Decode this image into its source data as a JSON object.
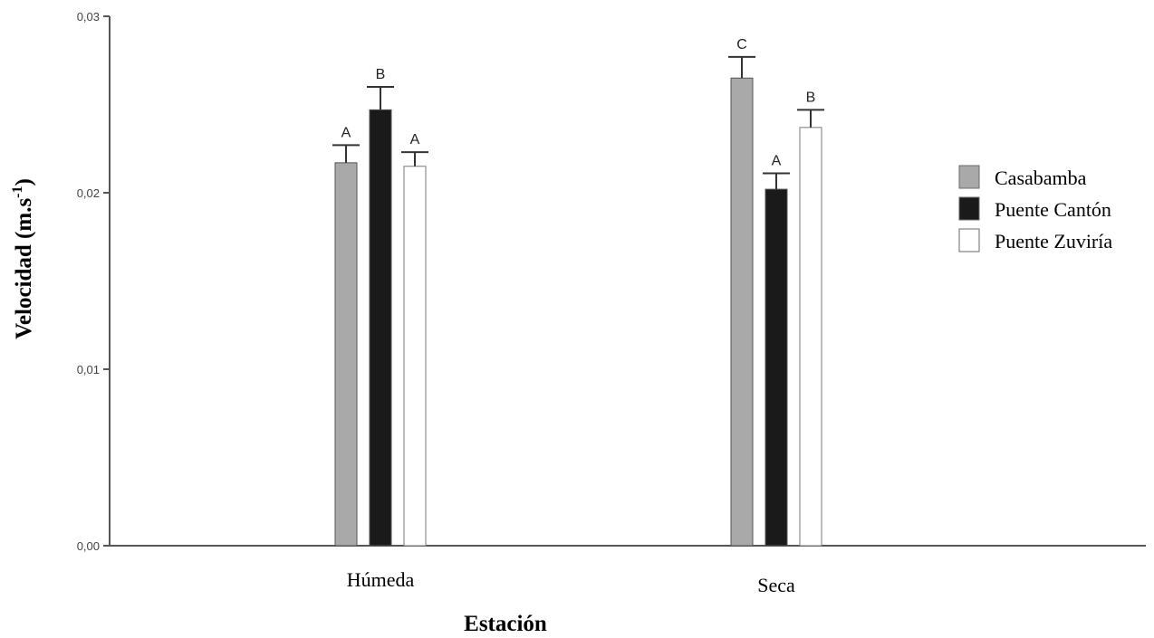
{
  "chart_data": {
    "type": "bar",
    "categories": [
      "Húmeda",
      "Seca"
    ],
    "series": [
      {
        "name": "Casabamba",
        "color": "#a9a9a9",
        "values": [
          0.0217,
          0.0265
        ],
        "errors": [
          0.001,
          0.0012
        ],
        "letters": [
          "A",
          "C"
        ]
      },
      {
        "name": "Puente Cantón",
        "color": "#1a1a1a",
        "values": [
          0.0247,
          0.0202
        ],
        "errors": [
          0.0013,
          0.0009
        ],
        "letters": [
          "B",
          "A"
        ]
      },
      {
        "name": "Puente Zuviría",
        "color": "#ffffff",
        "values": [
          0.0215,
          0.0237
        ],
        "errors": [
          0.0008,
          0.001
        ],
        "letters": [
          "A",
          "B"
        ]
      }
    ],
    "xlabel": "Estación",
    "ylabel_main": "Velocidad (m.s",
    "ylabel_sup": "-1",
    "ylabel_end": ")",
    "ylim": [
      0,
      0.03
    ],
    "yticks": [
      0,
      0.01,
      0.02,
      0.03
    ],
    "ytick_labels": [
      "0,00",
      "0,01",
      "0,02",
      "0,03"
    ],
    "grid": false,
    "legend_position": "right"
  }
}
